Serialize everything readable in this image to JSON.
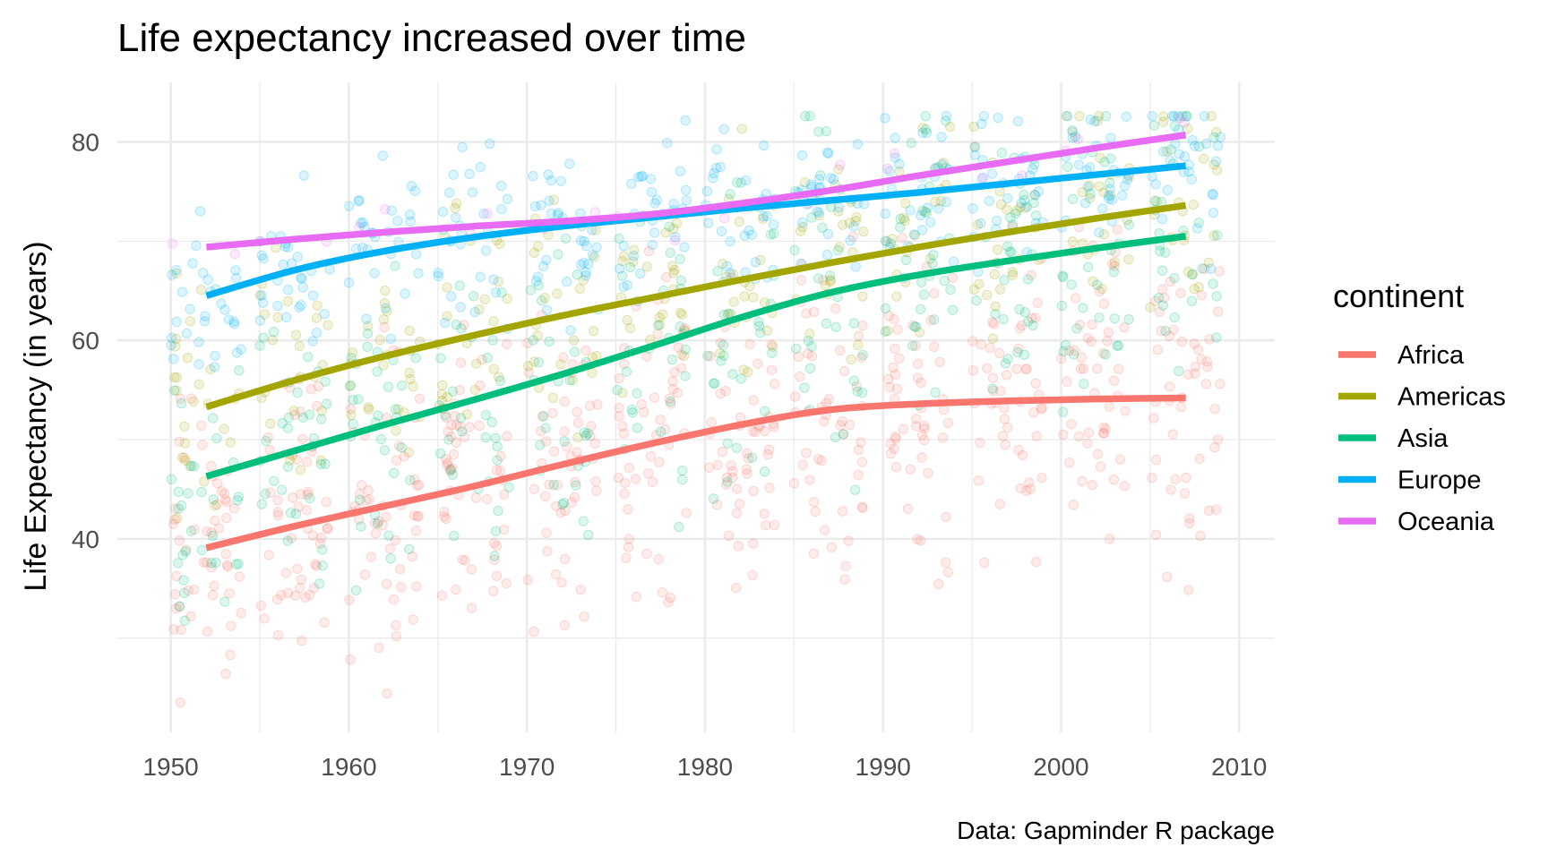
{
  "chart_data": {
    "type": "scatter",
    "title": "Life expectancy increased over time",
    "caption": "Data: Gapminder R package",
    "xlabel": "",
    "ylabel": "Life Expectancy (in years)",
    "xlim": [
      1947,
      2012
    ],
    "ylim": [
      20.5,
      86
    ],
    "x_ticks": [
      1950,
      1960,
      1970,
      1980,
      1990,
      2000,
      2010
    ],
    "y_ticks": [
      40,
      60,
      80
    ],
    "grid": true,
    "legend": {
      "title": "continent",
      "position": "right"
    },
    "colors": {
      "Africa": "#F8766D",
      "Americas": "#A3A500",
      "Asia": "#00BF7D",
      "Europe": "#00B0F6",
      "Oceania": "#E76BF3",
      "grid": "#EBEBEB",
      "tick_text": "#4D4D4D"
    },
    "series": [
      {
        "name": "Africa",
        "x": [
          1952,
          1957,
          1962,
          1967,
          1972,
          1977,
          1982,
          1987,
          1992,
          1997,
          2002,
          2007
        ],
        "y": [
          39.1,
          41.3,
          43.3,
          45.3,
          47.5,
          49.6,
          51.5,
          53.0,
          53.6,
          53.9,
          54.1,
          54.2
        ]
      },
      {
        "name": "Americas",
        "x": [
          1952,
          1957,
          1962,
          1967,
          1972,
          1977,
          1982,
          1987,
          1992,
          1997,
          2002,
          2007
        ],
        "y": [
          53.3,
          56.0,
          58.4,
          60.5,
          62.5,
          64.3,
          66.1,
          67.8,
          69.4,
          70.9,
          72.3,
          73.6
        ]
      },
      {
        "name": "Asia",
        "x": [
          1952,
          1957,
          1962,
          1967,
          1972,
          1977,
          1982,
          1987,
          1992,
          1997,
          2002,
          2007
        ],
        "y": [
          46.3,
          48.9,
          51.5,
          54.0,
          56.6,
          59.4,
          62.3,
          64.8,
          66.6,
          68.0,
          69.3,
          70.5
        ]
      },
      {
        "name": "Europe",
        "x": [
          1952,
          1957,
          1962,
          1967,
          1972,
          1977,
          1982,
          1987,
          1992,
          1997,
          2002,
          2007
        ],
        "y": [
          64.5,
          67.1,
          69.0,
          70.4,
          71.5,
          72.4,
          73.3,
          74.1,
          74.9,
          75.8,
          76.7,
          77.6
        ]
      },
      {
        "name": "Oceania",
        "x": [
          1952,
          1957,
          1962,
          1967,
          1972,
          1977,
          1982,
          1987,
          1992,
          1997,
          2002,
          2007
        ],
        "y": [
          69.4,
          70.2,
          70.9,
          71.5,
          72.0,
          72.7,
          73.8,
          75.1,
          76.6,
          78.0,
          79.4,
          80.7
        ]
      }
    ],
    "points_per_series_shown": "individual country-year observations with jitter; approx. range 23–83"
  }
}
